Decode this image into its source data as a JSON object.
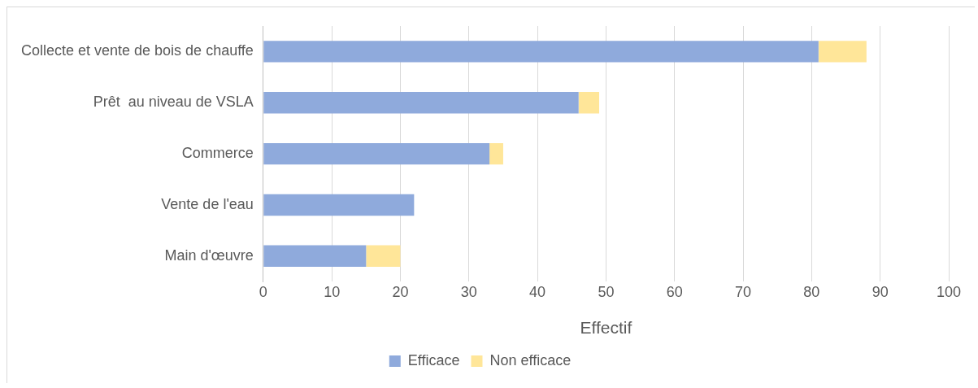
{
  "chart_data": {
    "type": "bar",
    "orientation": "horizontal",
    "stacked": true,
    "xlabel": "Effectif",
    "categories": [
      "Collecte et vente de bois de chauffe",
      "Prêt  au niveau de VSLA",
      "Commerce",
      "Vente de l'eau",
      "Main d'œuvre"
    ],
    "series": [
      {
        "name": "Efficace",
        "color": "#8faadc",
        "values": [
          81,
          46,
          33,
          22,
          15
        ]
      },
      {
        "name": "Non efficace",
        "color": "#ffe699",
        "values": [
          7,
          3,
          2,
          null,
          5
        ]
      }
    ],
    "xlim": [
      0,
      100
    ],
    "xticks": [
      0,
      10,
      20,
      30,
      40,
      50,
      60,
      70,
      80,
      90,
      100
    ],
    "grid": "x",
    "legend": "bottom"
  }
}
